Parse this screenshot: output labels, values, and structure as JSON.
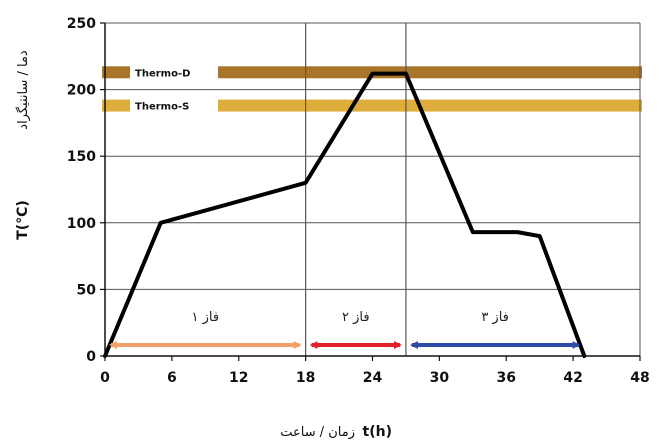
{
  "chart_data": {
    "type": "line",
    "y_axis_title": "دما / سانتیگراد",
    "y_axis_symbol": "T(°C)",
    "x_axis_title": "زمان / ساعت",
    "x_axis_symbol": "t(h)",
    "xlim": [
      0,
      48
    ],
    "ylim": [
      0,
      250
    ],
    "x_ticks": [
      0,
      6,
      12,
      18,
      24,
      30,
      36,
      42,
      48
    ],
    "y_ticks": [
      0,
      50,
      100,
      150,
      200,
      250
    ],
    "series": [
      {
        "color": "#000000",
        "points": [
          [
            0,
            0
          ],
          [
            5,
            100
          ],
          [
            18,
            130
          ],
          [
            24,
            212
          ],
          [
            27,
            212
          ],
          [
            33,
            93
          ],
          [
            37,
            93
          ],
          [
            39,
            90
          ],
          [
            43,
            0
          ]
        ]
      }
    ],
    "reference_bands": [
      {
        "label": "Thermo-D",
        "y": 213,
        "color": "#a8752b"
      },
      {
        "label": "Thermo-S",
        "y": 188,
        "color": "#dfad3c"
      }
    ],
    "phase_dividers": [
      18,
      27
    ],
    "phases": [
      {
        "label": "فاز ۱",
        "from": 0,
        "to": 18,
        "color": "#f2a16a"
      },
      {
        "label": "فاز ۲",
        "from": 18,
        "to": 27,
        "color": "#e2222a"
      },
      {
        "label": "فاز ۳",
        "from": 27,
        "to": 43,
        "color": "#2f4aa8"
      }
    ],
    "grid": true
  }
}
